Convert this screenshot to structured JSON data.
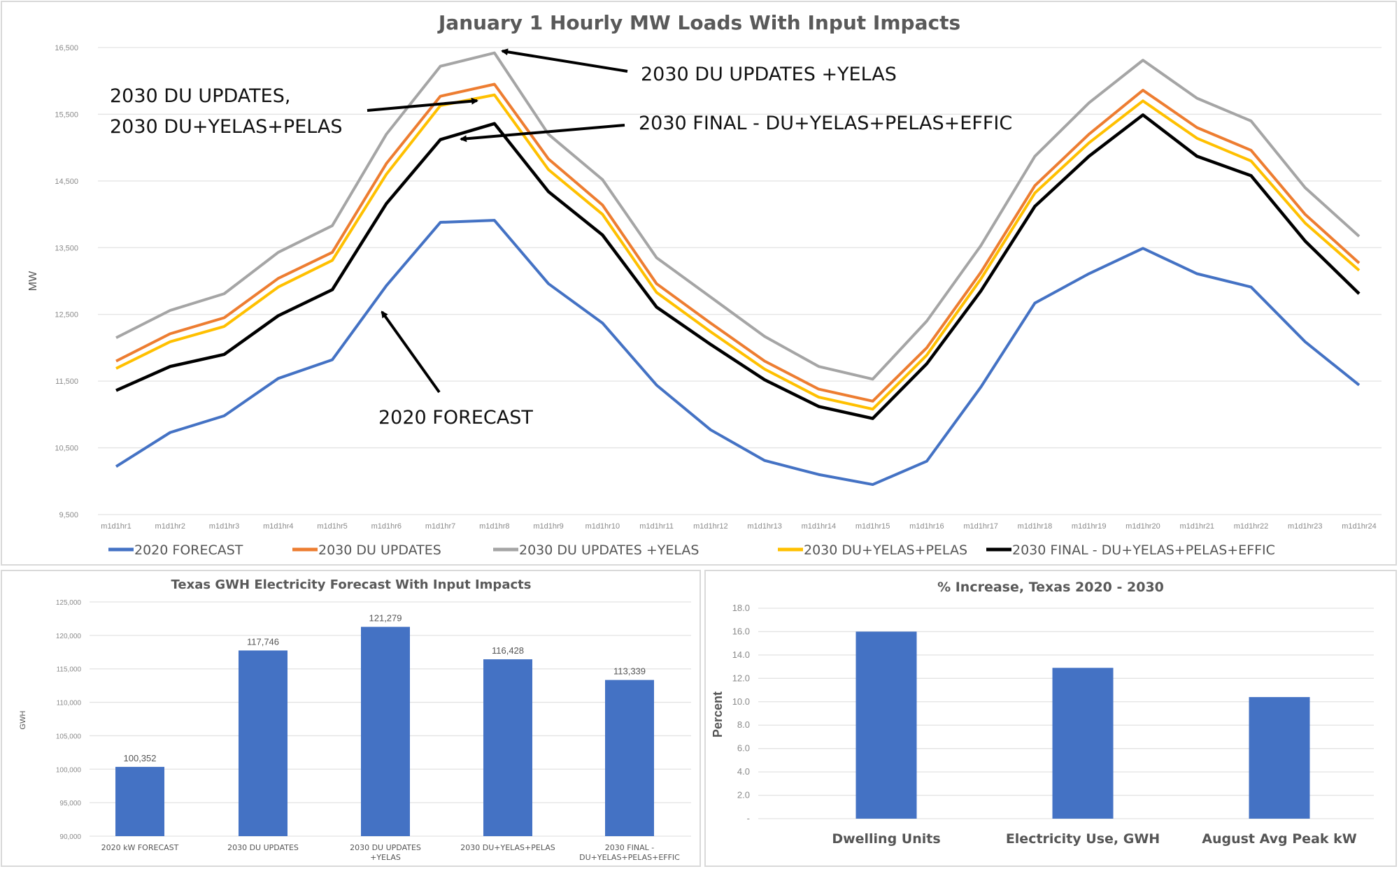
{
  "chart_data": [
    {
      "type": "line",
      "title": "January 1 Hourly MW Loads With Input Impacts",
      "xlabel": "",
      "ylabel": "MW",
      "ylim": [
        9500,
        16500
      ],
      "yticks": [
        "9,500",
        "10,500",
        "11,500",
        "12,500",
        "13,500",
        "14,500",
        "15,500",
        "16,500"
      ],
      "grid": true,
      "legend_position": "bottom",
      "x": [
        "m1d1hr1",
        "m1d1hr2",
        "m1d1hr3",
        "m1d1hr4",
        "m1d1hr5",
        "m1d1hr6",
        "m1d1hr7",
        "m1d1hr8",
        "m1d1hr9",
        "m1d1hr10",
        "m1d1hr11",
        "m1d1hr12",
        "m1d1hr13",
        "m1d1hr14",
        "m1d1hr15",
        "m1d1hr16",
        "m1d1hr17",
        "m1d1hr18",
        "m1d1hr19",
        "m1d1hr20",
        "m1d1hr21",
        "m1d1hr22",
        "m1d1hr23",
        "m1d1hr24"
      ],
      "series": [
        {
          "name": "2020  FORECAST",
          "color": "#4472c4",
          "values": [
            10220,
            10730,
            10980,
            11540,
            11820,
            12930,
            13880,
            13910,
            12960,
            12370,
            11440,
            10770,
            10310,
            10100,
            9950,
            10300,
            11410,
            12670,
            13110,
            13490,
            13110,
            12910,
            12090,
            11440
          ]
        },
        {
          "name": "2030 DU UPDATES",
          "color": "#ed7d31",
          "values": [
            11800,
            12210,
            12450,
            13040,
            13430,
            14760,
            15770,
            15950,
            14830,
            14140,
            12960,
            12370,
            11800,
            11380,
            11200,
            12000,
            13130,
            14430,
            15200,
            15860,
            15300,
            14960,
            14000,
            13270
          ]
        },
        {
          "name": "2030 DU UPDATES +YELAS",
          "color": "#a5a5a5",
          "values": [
            12150,
            12560,
            12810,
            13430,
            13830,
            15200,
            16220,
            16420,
            15200,
            14520,
            13350,
            12760,
            12170,
            11720,
            11530,
            12400,
            13530,
            14870,
            15670,
            16310,
            15740,
            15400,
            14400,
            13670
          ]
        },
        {
          "name": "2030 DU+YELAS+PELAS",
          "color": "#ffc000",
          "values": [
            11690,
            12090,
            12320,
            12910,
            13310,
            14600,
            15630,
            15790,
            14670,
            14000,
            12830,
            12240,
            11680,
            11260,
            11080,
            11890,
            13030,
            14320,
            15070,
            15700,
            15140,
            14800,
            13870,
            13160
          ]
        },
        {
          "name": "2030 FINAL - DU+YELAS+PELAS+EFFIC",
          "color": "#000000",
          "values": [
            11360,
            11720,
            11900,
            12480,
            12870,
            14160,
            15120,
            15360,
            14340,
            13690,
            12610,
            12050,
            11520,
            11120,
            10940,
            11760,
            12850,
            14120,
            14870,
            15490,
            14870,
            14580,
            13600,
            12810
          ]
        }
      ],
      "annotations": [
        {
          "text": "2030 DU UPDATES +YELAS"
        },
        {
          "text": "2030 DU UPDATES,"
        },
        {
          "text": "2030 DU+YELAS+PELAS"
        },
        {
          "text": "2030 FINAL - DU+YELAS+PELAS+EFFIC"
        },
        {
          "text": "2020  FORECAST"
        }
      ]
    },
    {
      "type": "bar",
      "title": "Texas GWH Electricity Forecast With Input Impacts",
      "xlabel": "",
      "ylabel": "GWH",
      "ylim": [
        90000,
        125000
      ],
      "yticks": [
        "90,000",
        "95,000",
        "100,000",
        "105,000",
        "110,000",
        "115,000",
        "120,000",
        "125,000"
      ],
      "grid": true,
      "categories": [
        [
          "2020 kW FORECAST"
        ],
        [
          "2030 DU UPDATES"
        ],
        [
          "2030 DU UPDATES",
          "+YELAS"
        ],
        [
          "2030 DU+YELAS+PELAS"
        ],
        [
          "2030 FINAL -",
          "DU+YELAS+PELAS+EFFIC"
        ]
      ],
      "values": [
        100352,
        117746,
        121279,
        116428,
        113339
      ],
      "labels": [
        "100,352",
        "117,746",
        "121,279",
        "116,428",
        "113,339"
      ],
      "color": "#4472c4"
    },
    {
      "type": "bar",
      "title": "% Increase, Texas 2020 - 2030",
      "xlabel": "",
      "ylabel": "Percent",
      "ylim": [
        0,
        18
      ],
      "yticks": [
        "-",
        "2.0",
        "4.0",
        "6.0",
        "8.0",
        "10.0",
        "12.0",
        "14.0",
        "16.0",
        "18.0"
      ],
      "grid": true,
      "categories": [
        "Dwelling Units",
        "Electricity Use, GWH",
        "August Avg Peak kW"
      ],
      "values": [
        16.0,
        12.9,
        10.4
      ],
      "color": "#4472c4"
    }
  ]
}
